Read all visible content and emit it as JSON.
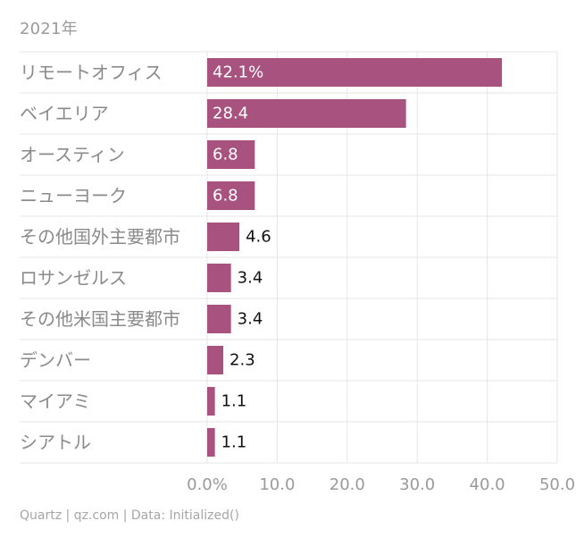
{
  "chart_data": {
    "type": "bar",
    "orientation": "horizontal",
    "title": "",
    "subtitle": "2021年",
    "xlabel": "",
    "ylabel": "",
    "categories": [
      "リモートオフィス",
      "ベイエリア",
      "オースティン",
      "ニューヨーク",
      "その他国外主要都市",
      "ロサンゼルス",
      "その他米国主要都市",
      "デンバー",
      "マイアミ",
      "シアトル"
    ],
    "values": [
      42.1,
      28.4,
      6.8,
      6.8,
      4.6,
      3.4,
      3.4,
      2.3,
      1.1,
      1.1
    ],
    "value_labels": [
      "42.1%",
      "28.4",
      "6.8",
      "6.8",
      "4.6",
      "3.4",
      "3.4",
      "2.3",
      "1.1",
      "1.1"
    ],
    "xlim": [
      0,
      50
    ],
    "x_ticks": [
      0,
      10,
      20,
      30,
      40,
      50
    ],
    "x_tick_labels": [
      "0.0%",
      "10.0",
      "20.0",
      "30.0",
      "40.0",
      "50.0"
    ],
    "grid": true,
    "bar_color": "#a8527f",
    "label_inside_color": "#ffffff",
    "label_outside_color": "#111111"
  },
  "footer": {
    "source": "Quartz | qz.com | Data: Initialized()"
  }
}
